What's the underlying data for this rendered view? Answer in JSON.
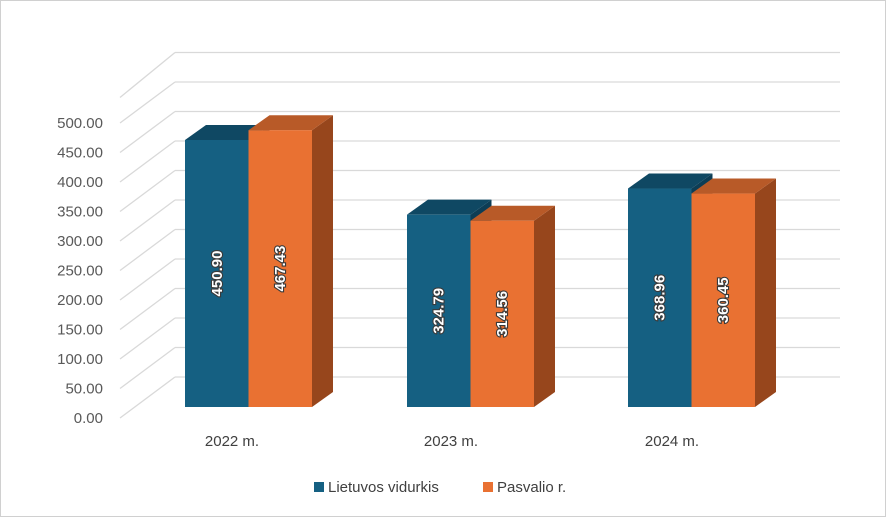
{
  "chart_data": {
    "type": "bar",
    "title": "",
    "xlabel": "",
    "ylabel": "",
    "categories": [
      "2022 m.",
      "2023 m.",
      "2024 m."
    ],
    "series": [
      {
        "name": "Lietuvos vidurkis",
        "values": [
          450.9,
          324.79,
          368.96
        ],
        "labels": [
          "450.90",
          "324.79",
          "368.96"
        ],
        "color": "#156082",
        "top_color": "#0f4863"
      },
      {
        "name": "Pasvalio r.",
        "values": [
          467.43,
          314.56,
          360.45
        ],
        "labels": [
          "467.43",
          "314.56",
          "360.45"
        ],
        "color": "#e97132",
        "top_color": "#b85a28",
        "side_color": "#97461c"
      }
    ],
    "ylim": [
      0,
      500
    ],
    "yticks": [
      "0.00",
      "50.00",
      "100.00",
      "150.00",
      "200.00",
      "250.00",
      "300.00",
      "350.00",
      "400.00",
      "450.00",
      "500.00"
    ],
    "grid": true,
    "legend": "bottom",
    "style": "3d-clustered-column"
  }
}
